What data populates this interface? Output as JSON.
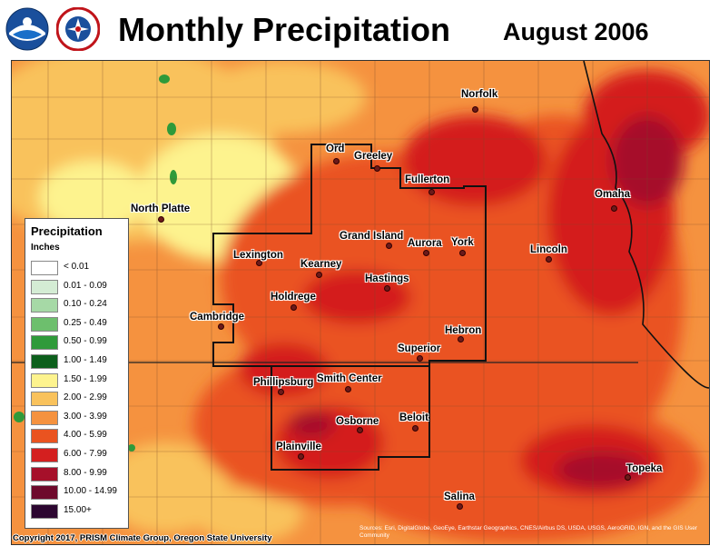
{
  "header": {
    "title": "Monthly Precipitation",
    "date": "August 2006",
    "logos": [
      "noaa-logo",
      "national-weather-service-logo"
    ]
  },
  "map": {
    "cities": [
      {
        "name": "Norfolk"
      },
      {
        "name": "Ord"
      },
      {
        "name": "Greeley"
      },
      {
        "name": "Fullerton"
      },
      {
        "name": "Omaha"
      },
      {
        "name": "North Platte"
      },
      {
        "name": "Grand Island"
      },
      {
        "name": "Aurora"
      },
      {
        "name": "York"
      },
      {
        "name": "Lincoln"
      },
      {
        "name": "Lexington"
      },
      {
        "name": "Kearney"
      },
      {
        "name": "Hastings"
      },
      {
        "name": "Holdrege"
      },
      {
        "name": "Cambridge"
      },
      {
        "name": "Hebron"
      },
      {
        "name": "Superior"
      },
      {
        "name": "Phillipsburg"
      },
      {
        "name": "Smith Center"
      },
      {
        "name": "Osborne"
      },
      {
        "name": "Beloit"
      },
      {
        "name": "Plainville"
      },
      {
        "name": "Topeka"
      },
      {
        "name": "Salina"
      }
    ]
  },
  "legend": {
    "title": "Precipitation",
    "units": "Inches",
    "items": [
      {
        "label": "< 0.01",
        "color": "#ffffff"
      },
      {
        "label": "0.01 - 0.09",
        "color": "#d4ecd4"
      },
      {
        "label": "0.10 - 0.24",
        "color": "#a6d9a6"
      },
      {
        "label": "0.25 - 0.49",
        "color": "#6dbf6d"
      },
      {
        "label": "0.50 - 0.99",
        "color": "#2f9a3a"
      },
      {
        "label": "1.00 - 1.49",
        "color": "#0c5f1c"
      },
      {
        "label": "1.50 - 1.99",
        "color": "#fdf38e"
      },
      {
        "label": "2.00 - 2.99",
        "color": "#f9c25c"
      },
      {
        "label": "3.00 - 3.99",
        "color": "#f5923f"
      },
      {
        "label": "4.00 - 5.99",
        "color": "#ea5320"
      },
      {
        "label": "6.00 - 7.99",
        "color": "#d41f1f"
      },
      {
        "label": "8.00 - 9.99",
        "color": "#a6102a"
      },
      {
        "label": "10.00 - 14.99",
        "color": "#6e0a2c"
      },
      {
        "label": "15.00+",
        "color": "#2c0630"
      }
    ]
  },
  "footer": {
    "credit": "Copyright 2017, PRISM Climate Group, Oregon State University",
    "sources": "Sources: Esri, DigitalGlobe, GeoEye, Earthstar Geographics, CNES/Airbus DS, USDA, USGS, AeroGRID, IGN, and the GIS User Community"
  }
}
